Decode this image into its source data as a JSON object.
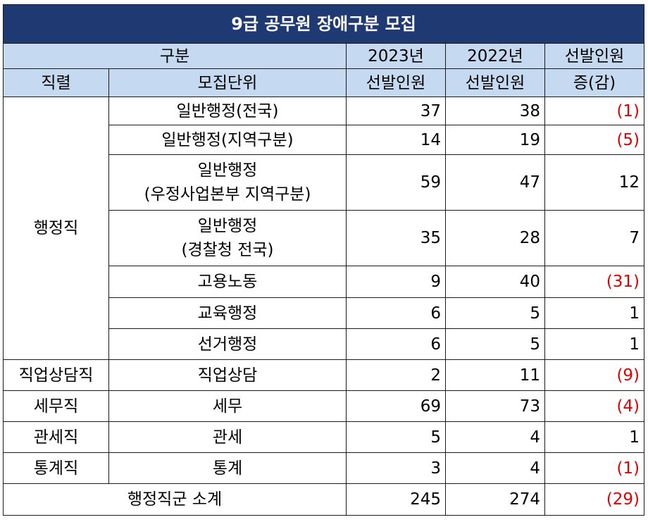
{
  "title": "9급 공무원 장애구분 모집",
  "header": {
    "category": "구분",
    "year_2023": "2023년",
    "year_2022": "2022년",
    "diff_line1": "선발인원",
    "series": "직렬",
    "unit": "모집단위",
    "selected_2023": "선발인원",
    "selected_2022": "선발인원",
    "diff_line2": "증(감)"
  },
  "rows": [
    {
      "unit1": "일반행정(전국)",
      "unit2": "",
      "v2023": "37",
      "v2022": "38",
      "diff": "(1)"
    },
    {
      "unit1": "일반행정(지역구분)",
      "unit2": "",
      "v2023": "14",
      "v2022": "19",
      "diff": "(5)"
    },
    {
      "unit1": "일반행정",
      "unit2": "(우정사업본부 지역구분)",
      "v2023": "59",
      "v2022": "47",
      "diff": "12"
    },
    {
      "unit1": "일반행정",
      "unit2": "(경찰청 전국)",
      "v2023": "35",
      "v2022": "28",
      "diff": "7"
    },
    {
      "unit1": "고용노동",
      "unit2": "",
      "v2023": "9",
      "v2022": "40",
      "diff": "(31)"
    },
    {
      "unit1": "교육행정",
      "unit2": "",
      "v2023": "6",
      "v2022": "5",
      "diff": "1"
    },
    {
      "unit1": "선거행정",
      "unit2": "",
      "v2023": "6",
      "v2022": "5",
      "diff": "1"
    },
    {
      "series": "직업상담직",
      "unit1": "직업상담",
      "v2023": "2",
      "v2022": "11",
      "diff": "(9)"
    },
    {
      "series": "세무직",
      "unit1": "세무",
      "v2023": "69",
      "v2022": "73",
      "diff": "(4)"
    },
    {
      "series": "관세직",
      "unit1": "관세",
      "v2023": "5",
      "v2022": "4",
      "diff": "1"
    },
    {
      "series": "통계직",
      "unit1": "통계",
      "v2023": "3",
      "v2022": "4",
      "diff": "(1)"
    }
  ],
  "group_series": "행정직",
  "subtotal": {
    "label": "행정직군 소계",
    "v2023": "245",
    "v2022": "274",
    "diff": "(29)"
  },
  "colors": {
    "title_bg": "#1f3a73",
    "header_bg": "#c5d9f1",
    "negative": "#e00000"
  }
}
